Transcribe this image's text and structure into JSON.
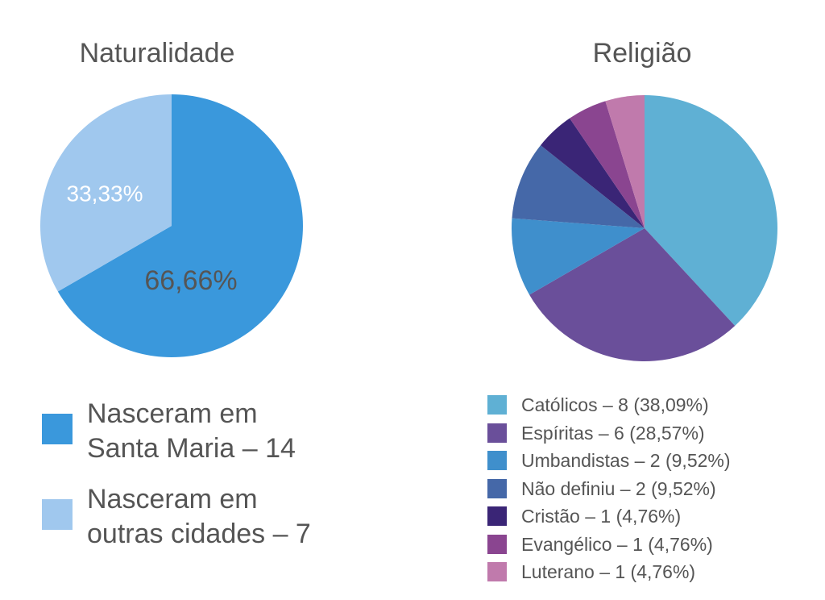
{
  "chart_data": [
    {
      "type": "pie",
      "title": "Naturalidade",
      "categories": [
        "Nasceram em\nSanta Maria – 14",
        "Nasceram em\noutras cidades – 7"
      ],
      "values": [
        66.66,
        33.33
      ],
      "value_labels": [
        "66,66%",
        "33,33%"
      ],
      "colors": [
        "#3a98dc",
        "#a0c8ee"
      ]
    },
    {
      "type": "pie",
      "title": "Religião",
      "categories": [
        "Católicos – 8 (38,09%)",
        "Espíritas – 6 (28,57%)",
        "Umbandistas – 2 (9,52%)",
        "Não definiu – 2 (9,52%)",
        "Cristão – 1 (4,76%)",
        "Evangélico – 1 (4,76%)",
        "Luterano – 1 (4,76%)"
      ],
      "values": [
        38.09,
        28.57,
        9.52,
        9.52,
        4.76,
        4.76,
        4.76
      ],
      "colors": [
        "#5fb0d4",
        "#6a4f9a",
        "#3f8fcc",
        "#4568a8",
        "#3a2576",
        "#8a4590",
        "#c07aac"
      ]
    }
  ]
}
